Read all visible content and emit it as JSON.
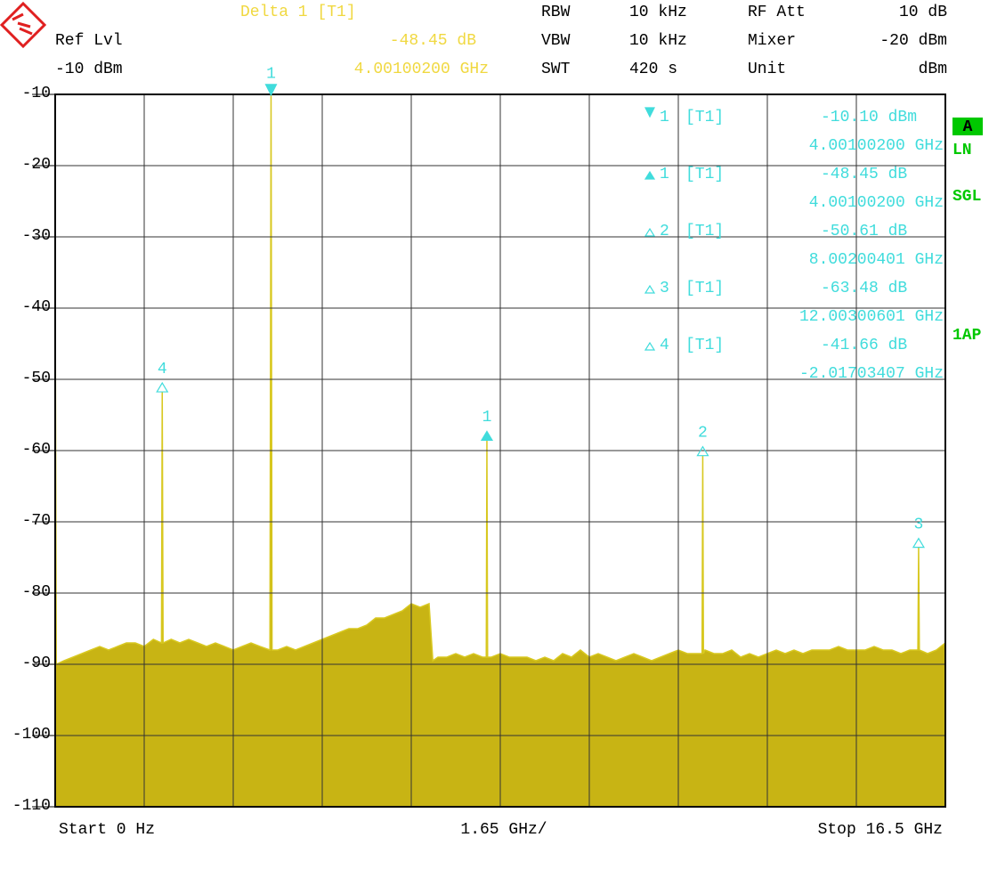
{
  "chart_data": {
    "type": "line",
    "header": {
      "delta_title": "Delta 1 [T1]",
      "delta_value": "-48.45 dB",
      "delta_freq": "4.00100200 GHz",
      "ref_label": "Ref Lvl",
      "ref_value": "-10 dBm",
      "rbw_label": "RBW",
      "rbw_value": "10 kHz",
      "vbw_label": "VBW",
      "vbw_value": "10 kHz",
      "swt_label": "SWT",
      "swt_value": "420 s",
      "att_label": "RF Att",
      "att_value": "10 dB",
      "mixer_label": "Mixer",
      "mixer_value": "-20 dBm",
      "unit_label": "Unit",
      "unit_value": "dBm"
    },
    "marker_table": [
      {
        "symbol": "down-filled",
        "id": "1",
        "tag": "[T1]",
        "value": "-10.10 dBm",
        "freq": "4.00100200 GHz"
      },
      {
        "symbol": "up-filled",
        "id": "1",
        "tag": "[T1]",
        "value": "-48.45 dB",
        "freq": "4.00100200 GHz"
      },
      {
        "symbol": "up-open",
        "id": "2",
        "tag": "[T1]",
        "value": "-50.61 dB",
        "freq": "8.00200401 GHz"
      },
      {
        "symbol": "up-open",
        "id": "3",
        "tag": "[T1]",
        "value": "-63.48 dB",
        "freq": "12.00300601 GHz"
      },
      {
        "symbol": "up-open",
        "id": "4",
        "tag": "[T1]",
        "value": "-41.66 dB",
        "freq": "-2.01703407 GHz"
      }
    ],
    "side_labels": [
      "A",
      "LN",
      "SGL",
      "1AP"
    ],
    "footer": {
      "start": "Start 0 Hz",
      "span": "1.65 GHz/",
      "stop": "Stop 16.5 GHz"
    },
    "xlim": [
      0,
      16.5
    ],
    "ylim": [
      -110,
      -10
    ],
    "yticks": [
      -10,
      -20,
      -30,
      -40,
      -50,
      -60,
      -70,
      -80,
      -90,
      -100,
      -110
    ],
    "grid": true,
    "color": "#c8b414",
    "marker_color": "#40dcdc",
    "markers": [
      {
        "label": "1",
        "x": 4.001002,
        "y": -10.1,
        "symbol": "down-filled"
      },
      {
        "label": "4",
        "x": 1.98397,
        "y": -51.76,
        "symbol": "up-open"
      },
      {
        "label": "1",
        "x": 8.002004,
        "y": -58.55,
        "symbol": "up-filled"
      },
      {
        "label": "2",
        "x": 12.003006,
        "y": -60.71,
        "symbol": "up-open"
      },
      {
        "label": "3",
        "x": 16.004008,
        "y": -73.58,
        "symbol": "up-open"
      }
    ],
    "x": [
      0,
      0.02,
      0.165,
      0.33,
      0.495,
      0.66,
      0.825,
      0.99,
      1.155,
      1.32,
      1.485,
      1.65,
      1.82,
      1.97,
      1.984,
      2.0,
      2.15,
      2.31,
      2.475,
      2.64,
      2.805,
      2.97,
      3.135,
      3.3,
      3.465,
      3.63,
      3.795,
      3.98,
      4.001,
      4.02,
      4.125,
      4.29,
      4.455,
      4.62,
      4.785,
      4.95,
      5.115,
      5.28,
      5.445,
      5.61,
      5.775,
      5.94,
      6.105,
      6.27,
      6.435,
      6.6,
      6.765,
      6.93,
      7.0,
      7.095,
      7.26,
      7.425,
      7.59,
      7.755,
      7.92,
      7.99,
      8.002,
      8.015,
      8.085,
      8.25,
      8.415,
      8.58,
      8.745,
      8.91,
      9.075,
      9.24,
      9.405,
      9.57,
      9.735,
      9.9,
      10.065,
      10.23,
      10.395,
      10.56,
      10.725,
      10.89,
      11.055,
      11.22,
      11.385,
      11.55,
      11.715,
      11.88,
      11.99,
      12.003,
      12.016,
      12.045,
      12.21,
      12.375,
      12.54,
      12.705,
      12.87,
      13.035,
      13.2,
      13.365,
      13.53,
      13.695,
      13.86,
      14.025,
      14.19,
      14.355,
      14.52,
      14.685,
      14.85,
      15.015,
      15.18,
      15.345,
      15.51,
      15.675,
      15.84,
      15.99,
      16.004,
      16.018,
      16.17,
      16.335,
      16.5
    ],
    "values": [
      -35.5,
      -90,
      -89.5,
      -89,
      -88.5,
      -88,
      -87.5,
      -88,
      -87.5,
      -87,
      -87,
      -87.5,
      -86.5,
      -87,
      -51.76,
      -87,
      -86.5,
      -87,
      -86.5,
      -87,
      -87.5,
      -87,
      -87.5,
      -88,
      -87.5,
      -87,
      -87.5,
      -88,
      -10.1,
      -88,
      -88,
      -87.5,
      -88,
      -87.5,
      -87,
      -86.5,
      -86,
      -85.5,
      -85,
      -85,
      -84.5,
      -83.5,
      -83.5,
      -83,
      -82.5,
      -81.5,
      -82,
      -81.5,
      -89.5,
      -89,
      -89,
      -88.5,
      -89,
      -88.5,
      -89,
      -89,
      -58.55,
      -89,
      -89,
      -88.5,
      -89,
      -89,
      -89,
      -89.5,
      -89,
      -89.5,
      -88.5,
      -89,
      -88,
      -89,
      -88.5,
      -89,
      -89.5,
      -89,
      -88.5,
      -89,
      -89.5,
      -89,
      -88.5,
      -88,
      -88.5,
      -88.5,
      -88.5,
      -60.71,
      -88.5,
      -88,
      -88.5,
      -88.5,
      -88,
      -89,
      -88.5,
      -89,
      -88.5,
      -88,
      -88.5,
      -88,
      -88.5,
      -88,
      -88,
      -88,
      -87.5,
      -88,
      -88,
      -88,
      -87.5,
      -88,
      -88,
      -88.5,
      -88,
      -88,
      -73.58,
      -88,
      -88.5,
      -88,
      -87
    ]
  }
}
